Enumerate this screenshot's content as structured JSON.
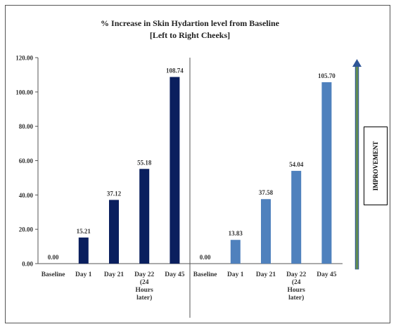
{
  "chart_data": {
    "type": "bar",
    "title": "% Increase in Skin Hydartion level from Baseline",
    "subtitle": "[Left to Right Cheeks]",
    "ylim": [
      0,
      120
    ],
    "yticks": [
      "0.00",
      "20.00",
      "40.00",
      "60.00",
      "80.00",
      "100.00",
      "120.00"
    ],
    "grid": false,
    "panels": [
      {
        "categories": [
          "Baseline",
          "Day 1",
          "Day 21",
          "Day 22 (24 Hours later)",
          "Day 45"
        ],
        "values": [
          0.0,
          15.21,
          37.12,
          55.18,
          108.74
        ],
        "labels": [
          "0.00",
          "15.21",
          "37.12",
          "55.18",
          "108.74"
        ],
        "color": "#0a1f5e"
      },
      {
        "categories": [
          "Baseline",
          "Day 1",
          "Day 21",
          "Day 22 (24 Hours later)",
          "Day 45"
        ],
        "values": [
          0.0,
          13.83,
          37.58,
          54.04,
          105.7
        ],
        "labels": [
          "0.00",
          "13.83",
          "37.58",
          "54.04",
          "105.70"
        ],
        "color": "#4f81bd"
      }
    ],
    "category_lines": [
      [
        "Baseline"
      ],
      [
        "Day 1"
      ],
      [
        "Day 21"
      ],
      [
        "Day 22",
        "(24",
        "Hours",
        "later)"
      ],
      [
        "Day 45"
      ]
    ]
  },
  "annotation": {
    "label": "IMPROVEMENT",
    "arrow_colors": [
      "#2e5597",
      "#76a33a"
    ]
  }
}
